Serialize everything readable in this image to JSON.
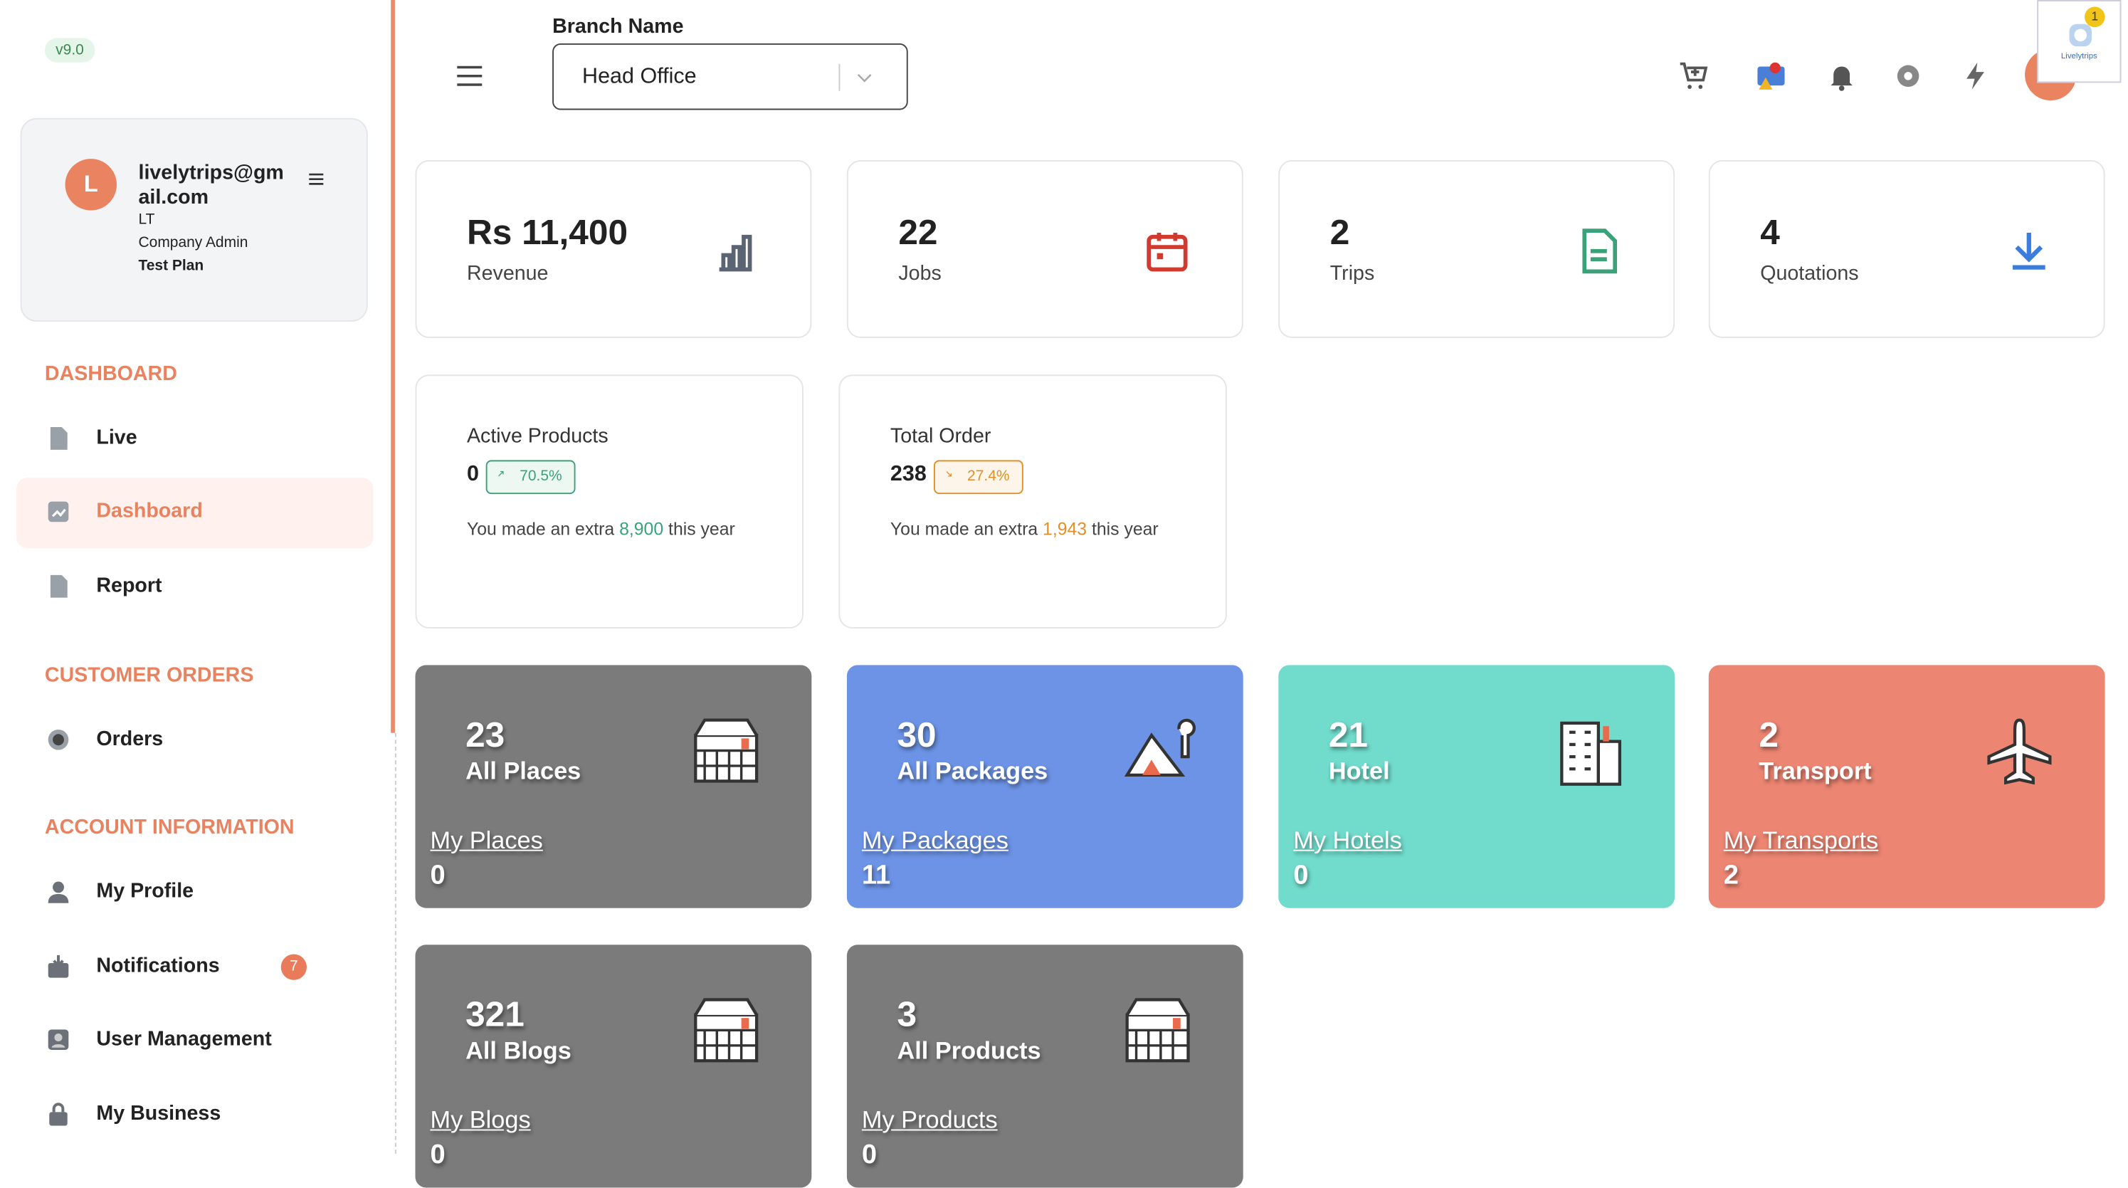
{
  "version": "v9.0",
  "user": {
    "avatar": "L",
    "email": "livelytrips@gmail.com",
    "short": "LT",
    "role": "Company Admin",
    "plan": "Test Plan"
  },
  "nav": [
    {
      "heading": "DASHBOARD",
      "items": [
        {
          "label": "Live"
        },
        {
          "label": "Dashboard",
          "active": true
        },
        {
          "label": "Report"
        }
      ]
    },
    {
      "heading": "CUSTOMER ORDERS",
      "items": [
        {
          "label": "Orders"
        }
      ]
    },
    {
      "heading": "ACCOUNT INFORMATION",
      "items": [
        {
          "label": "My Profile"
        },
        {
          "label": "Notifications",
          "badge": "7"
        },
        {
          "label": "User Management"
        },
        {
          "label": "My Business"
        }
      ]
    }
  ],
  "header": {
    "branch_label": "Branch Name",
    "branch_value": "Head Office",
    "app_badge": "1",
    "app_name": "Livelytrips"
  },
  "stats": [
    {
      "value": "Rs 11,400",
      "label": "Revenue"
    },
    {
      "value": "22",
      "label": "Jobs"
    },
    {
      "value": "2",
      "label": "Trips"
    },
    {
      "value": "4",
      "label": "Quotations"
    }
  ],
  "summary": [
    {
      "title": "Active Products",
      "value": "0",
      "change": "70.5%",
      "trend": "up",
      "note_prefix": "You made an extra",
      "note_amount": "8,900",
      "note_suffix": "this year"
    },
    {
      "title": "Total Order",
      "value": "238",
      "change": "27.4%",
      "trend": "down",
      "note_prefix": "You made an extra",
      "note_amount": "1,943",
      "note_suffix": "this year"
    }
  ],
  "tiles": [
    {
      "count": "23",
      "label": "All Places",
      "link": "My Places",
      "sub": "0"
    },
    {
      "count": "30",
      "label": "All Packages",
      "link": "My Packages",
      "sub": "11"
    },
    {
      "count": "21",
      "label": "Hotel",
      "link": "My Hotels",
      "sub": "0"
    },
    {
      "count": "2",
      "label": "Transport",
      "link": "My Transports",
      "sub": "2"
    },
    {
      "count": "321",
      "label": "All Blogs",
      "link": "My Blogs",
      "sub": "0"
    },
    {
      "count": "3",
      "label": "All Products",
      "link": "My Products",
      "sub": "0"
    }
  ]
}
